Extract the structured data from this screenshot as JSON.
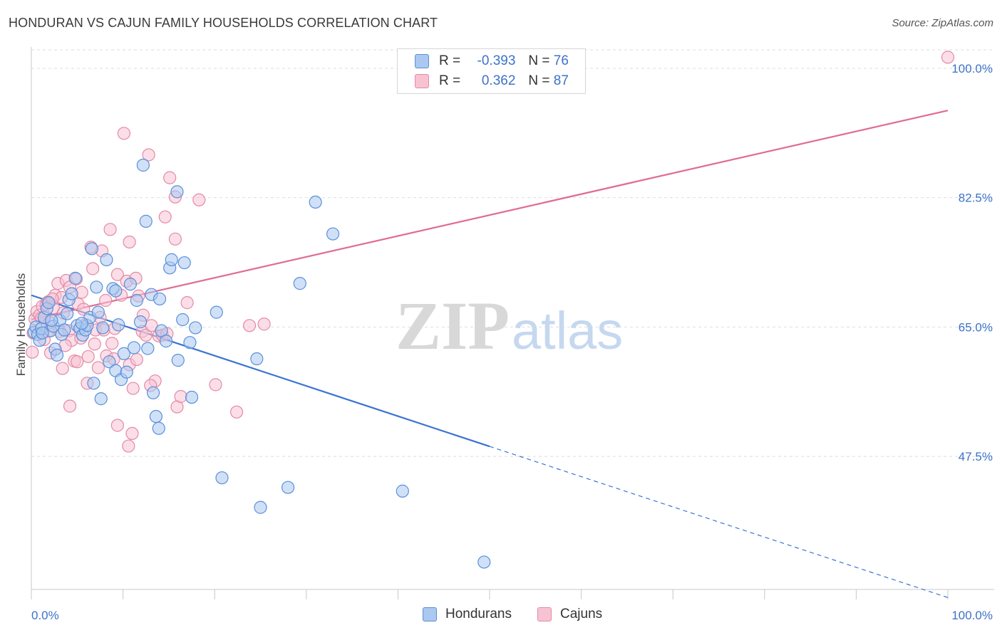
{
  "title": "HONDURAN VS CAJUN FAMILY HOUSEHOLDS CORRELATION CHART",
  "source": "Source: ZipAtlas.com",
  "watermark": {
    "zip": "ZIP",
    "atlas": "atlas"
  },
  "legend": {
    "r_label": "R =",
    "n_label": "N =",
    "rows": [
      {
        "r": "-0.393",
        "n": "76",
        "color": "#aac8f0",
        "edge": "#5b8fd9"
      },
      {
        "r": "0.362",
        "n": "87",
        "color": "#f7c3d3",
        "edge": "#e48aa6"
      }
    ]
  },
  "chart_data": {
    "type": "scatter",
    "title": "HONDURAN VS CAJUN FAMILY HOUSEHOLDS CORRELATION CHART",
    "xlabel": "",
    "ylabel": "Family Households",
    "xlim": [
      0,
      100
    ],
    "ylim": [
      29.5,
      102.5
    ],
    "x_tick_labels": [
      "0.0%",
      "100.0%"
    ],
    "y_ticks": [
      47.5,
      65.0,
      82.5,
      100.0
    ],
    "y_tick_labels": [
      "47.5%",
      "65.0%",
      "82.5%",
      "100.0%"
    ],
    "grid": "horizontal dashed",
    "series": [
      {
        "name": "Hondurans",
        "color": "#5b8fd9",
        "fill": "#aac8f0",
        "trend": {
          "x0": 0,
          "y0": 69.3,
          "x1": 100,
          "y1": 28.4,
          "solid_until": 50
        },
        "points": [
          [
            0.3,
            64.3
          ],
          [
            0.5,
            65.0
          ],
          [
            0.7,
            64.0
          ],
          [
            0.9,
            63.2
          ],
          [
            1.1,
            64.8
          ],
          [
            1.4,
            66.3
          ],
          [
            1.7,
            67.5
          ],
          [
            1.9,
            68.3
          ],
          [
            2.1,
            64.5
          ],
          [
            2.4,
            65.1
          ],
          [
            2.6,
            62.0
          ],
          [
            2.8,
            61.2
          ],
          [
            3.1,
            65.9
          ],
          [
            3.3,
            64.0
          ],
          [
            3.6,
            64.6
          ],
          [
            3.9,
            66.8
          ],
          [
            4.1,
            68.7
          ],
          [
            4.4,
            69.5
          ],
          [
            4.8,
            71.6
          ],
          [
            5.0,
            65.2
          ],
          [
            5.3,
            64.8
          ],
          [
            5.6,
            63.9
          ],
          [
            5.9,
            64.6
          ],
          [
            6.1,
            65.2
          ],
          [
            6.4,
            66.3
          ],
          [
            6.6,
            75.6
          ],
          [
            6.8,
            57.4
          ],
          [
            7.1,
            70.4
          ],
          [
            7.3,
            67.0
          ],
          [
            7.6,
            55.3
          ],
          [
            7.8,
            64.9
          ],
          [
            8.2,
            74.1
          ],
          [
            8.5,
            60.3
          ],
          [
            8.9,
            70.2
          ],
          [
            9.2,
            59.1
          ],
          [
            9.5,
            65.3
          ],
          [
            9.8,
            57.9
          ],
          [
            10.1,
            61.4
          ],
          [
            10.4,
            58.9
          ],
          [
            10.8,
            70.8
          ],
          [
            11.2,
            62.2
          ],
          [
            11.5,
            68.6
          ],
          [
            11.9,
            65.7
          ],
          [
            12.2,
            86.9
          ],
          [
            12.5,
            79.3
          ],
          [
            12.7,
            62.1
          ],
          [
            13.1,
            69.4
          ],
          [
            13.3,
            56.1
          ],
          [
            13.6,
            52.9
          ],
          [
            13.9,
            51.3
          ],
          [
            14.2,
            64.5
          ],
          [
            14.7,
            63.1
          ],
          [
            15.1,
            73.0
          ],
          [
            15.3,
            74.1
          ],
          [
            15.9,
            83.3
          ],
          [
            16.0,
            60.5
          ],
          [
            16.5,
            66.0
          ],
          [
            16.7,
            73.7
          ],
          [
            17.3,
            62.9
          ],
          [
            17.5,
            55.5
          ],
          [
            17.9,
            64.9
          ],
          [
            20.2,
            67.0
          ],
          [
            20.8,
            44.6
          ],
          [
            24.6,
            60.7
          ],
          [
            25.0,
            40.6
          ],
          [
            28.0,
            43.3
          ],
          [
            29.3,
            70.9
          ],
          [
            31.0,
            81.9
          ],
          [
            32.9,
            77.6
          ],
          [
            40.5,
            42.8
          ],
          [
            49.4,
            33.2
          ],
          [
            1.2,
            64.2
          ],
          [
            2.2,
            65.9
          ],
          [
            5.5,
            65.5
          ],
          [
            9.2,
            69.9
          ],
          [
            14.0,
            68.8
          ]
        ]
      },
      {
        "name": "Cajuns",
        "color": "#e48aa6",
        "fill": "#f7c3d3",
        "trend": {
          "x0": 0,
          "y0": 66.0,
          "x1": 100,
          "y1": 94.3,
          "solid_until": 100
        },
        "points": [
          [
            0.1,
            61.6
          ],
          [
            0.4,
            66.1
          ],
          [
            0.6,
            67.1
          ],
          [
            0.9,
            66.6
          ],
          [
            1.2,
            67.8
          ],
          [
            1.6,
            68.1
          ],
          [
            1.8,
            64.4
          ],
          [
            2.1,
            61.5
          ],
          [
            2.4,
            67.6
          ],
          [
            2.6,
            69.3
          ],
          [
            2.9,
            70.9
          ],
          [
            3.1,
            64.4
          ],
          [
            3.3,
            69.0
          ],
          [
            3.5,
            66.9
          ],
          [
            3.8,
            71.3
          ],
          [
            4.1,
            64.5
          ],
          [
            4.4,
            63.2
          ],
          [
            4.7,
            60.4
          ],
          [
            4.9,
            71.5
          ],
          [
            5.1,
            68.1
          ],
          [
            5.4,
            63.5
          ],
          [
            5.7,
            67.4
          ],
          [
            5.9,
            65.3
          ],
          [
            6.2,
            61.0
          ],
          [
            6.5,
            75.8
          ],
          [
            6.7,
            72.9
          ],
          [
            7.0,
            64.6
          ],
          [
            7.3,
            59.5
          ],
          [
            7.7,
            75.3
          ],
          [
            7.9,
            64.6
          ],
          [
            8.2,
            61.1
          ],
          [
            8.6,
            78.2
          ],
          [
            8.8,
            62.8
          ],
          [
            9.1,
            64.8
          ],
          [
            9.4,
            72.1
          ],
          [
            9.8,
            69.3
          ],
          [
            10.1,
            91.2
          ],
          [
            10.4,
            71.2
          ],
          [
            10.7,
            59.9
          ],
          [
            11.1,
            56.7
          ],
          [
            11.4,
            71.6
          ],
          [
            11.7,
            69.2
          ],
          [
            12.1,
            64.4
          ],
          [
            12.5,
            63.9
          ],
          [
            12.8,
            88.3
          ],
          [
            13.1,
            65.2
          ],
          [
            13.5,
            57.7
          ],
          [
            13.9,
            63.8
          ],
          [
            14.3,
            63.9
          ],
          [
            14.8,
            64.1
          ],
          [
            15.1,
            85.2
          ],
          [
            15.7,
            82.6
          ],
          [
            15.9,
            54.2
          ],
          [
            16.3,
            55.6
          ],
          [
            17.0,
            68.3
          ],
          [
            18.3,
            82.2
          ],
          [
            20.1,
            57.2
          ],
          [
            22.4,
            53.5
          ],
          [
            23.8,
            65.2
          ],
          [
            25.4,
            65.4
          ],
          [
            4.2,
            54.3
          ],
          [
            9.4,
            51.7
          ],
          [
            10.6,
            48.9
          ],
          [
            11.0,
            50.6
          ],
          [
            6.1,
            57.4
          ],
          [
            5.0,
            60.3
          ],
          [
            1.1,
            66.2
          ],
          [
            1.4,
            63.3
          ],
          [
            1.8,
            68.4
          ],
          [
            2.3,
            68.8
          ],
          [
            3.7,
            62.5
          ],
          [
            4.2,
            70.4
          ],
          [
            5.5,
            69.7
          ],
          [
            6.9,
            62.7
          ],
          [
            7.5,
            66.3
          ],
          [
            8.1,
            68.6
          ],
          [
            9.0,
            60.7
          ],
          [
            10.7,
            76.5
          ],
          [
            12.2,
            66.6
          ],
          [
            13.0,
            57.1
          ],
          [
            14.6,
            79.9
          ],
          [
            15.7,
            76.9
          ],
          [
            11.5,
            60.6
          ],
          [
            3.4,
            59.4
          ],
          [
            0.2,
            64.2
          ],
          [
            100.0,
            101.5
          ],
          [
            2.0,
            65.6
          ]
        ]
      }
    ]
  },
  "bottom_legend": [
    "Hondurans",
    "Cajuns"
  ]
}
